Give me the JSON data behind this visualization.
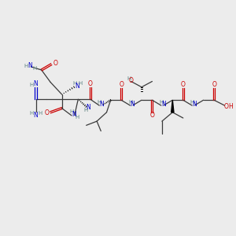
{
  "bg_color": "#ececec",
  "bond_color": "#3a3a3a",
  "wedge_color": "#000000",
  "N_color": "#0000cc",
  "O_color": "#cc0000",
  "H_color": "#5a8080",
  "xlim": [
    0,
    14.5
  ],
  "ylim": [
    0,
    11.5
  ]
}
